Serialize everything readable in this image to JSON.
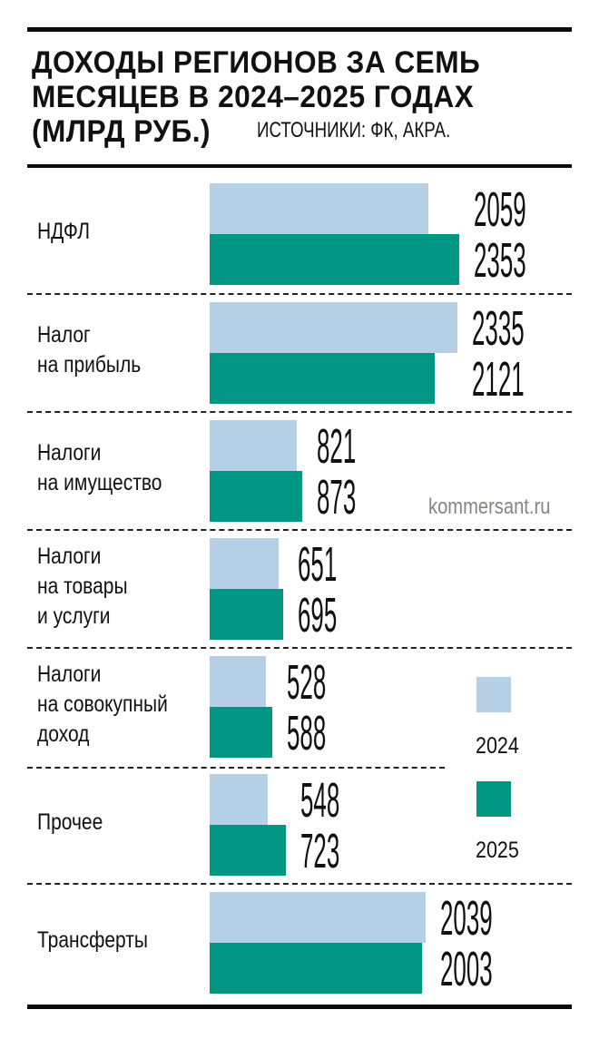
{
  "header": {
    "title_lines": [
      "ДОХОДЫ РЕГИОНОВ ЗА СЕМЬ",
      "МЕСЯЦЕВ В 2024–2025 ГОДАХ",
      "(МЛРД РУБ.)"
    ],
    "source": "ИСТОЧНИКИ: ФК, АКРА."
  },
  "watermark": "kommersant.ru",
  "colors": {
    "y2024": "#b5cfe5",
    "y2025": "#009684"
  },
  "legend": [
    {
      "label": "2024",
      "color": "#b5cfe5"
    },
    {
      "label": "2025",
      "color": "#009684"
    }
  ],
  "chart_data": {
    "type": "bar",
    "orientation": "horizontal",
    "title": "Доходы регионов за семь месяцев в 2024–2025 годах (млрд руб.)",
    "source": "Источники: ФК, АКРА.",
    "unit": "млрд руб.",
    "categories": [
      "НДФЛ",
      "Налог на прибыль",
      "Налоги на имущество",
      "Налоги на товары и услуги",
      "Налоги на совокупный доход",
      "Прочее",
      "Трансферты"
    ],
    "series": [
      {
        "name": "2024",
        "color": "#b5cfe5",
        "values": [
          2059,
          2335,
          821,
          651,
          528,
          548,
          2039
        ]
      },
      {
        "name": "2025",
        "color": "#009684",
        "values": [
          2353,
          2121,
          873,
          695,
          588,
          723,
          2003
        ]
      }
    ],
    "legend_position": "right",
    "grid": false
  },
  "rows": [
    {
      "label_lines": [
        "НДФЛ"
      ],
      "v2024": "2059",
      "v2025": "2353"
    },
    {
      "label_lines": [
        "Налог",
        "на прибыль"
      ],
      "v2024": "2335",
      "v2025": "2121"
    },
    {
      "label_lines": [
        "Налоги",
        "на имущество"
      ],
      "v2024": "821",
      "v2025": "873"
    },
    {
      "label_lines": [
        "Налоги",
        "на товары",
        "и услуги"
      ],
      "v2024": "651",
      "v2025": "695"
    },
    {
      "label_lines": [
        "Налоги",
        "на совокупный",
        "доход"
      ],
      "v2024": "528",
      "v2025": "588"
    },
    {
      "label_lines": [
        "Прочее"
      ],
      "v2024": "548",
      "v2025": "723"
    },
    {
      "label_lines": [
        "Трансферты"
      ],
      "v2024": "2039",
      "v2025": "2003"
    }
  ]
}
